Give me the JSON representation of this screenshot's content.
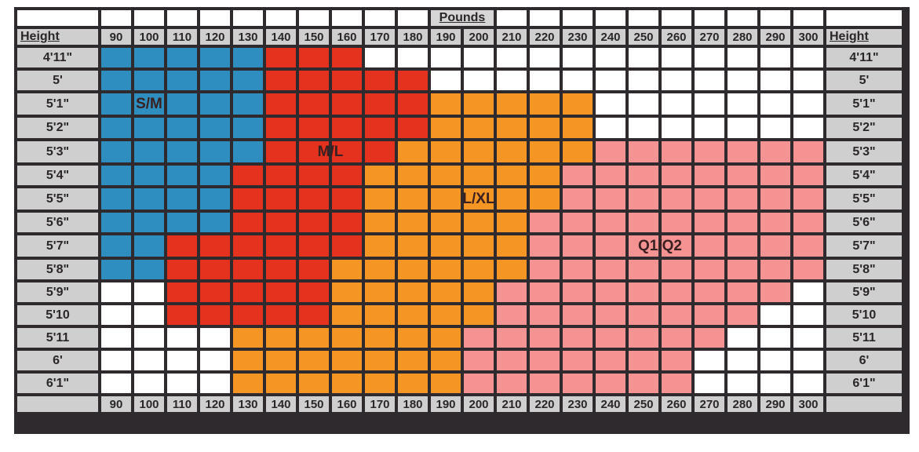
{
  "chart_data": {
    "type": "heatmap",
    "title": "Pounds",
    "xlabel": "Pounds",
    "ylabel": "Height",
    "row_header_label": "Height",
    "weights": [
      "90",
      "100",
      "110",
      "120",
      "130",
      "140",
      "150",
      "160",
      "170",
      "180",
      "190",
      "200",
      "210",
      "220",
      "230",
      "240",
      "250",
      "260",
      "270",
      "280",
      "290",
      "300"
    ],
    "heights": [
      "4'11\"",
      "5'",
      "5'1\"",
      "5'2\"",
      "5'3\"",
      "5'4\"",
      "5'5\"",
      "5'6\"",
      "5'7\"",
      "5'8\"",
      "5'9\"",
      "5'10",
      "5'11",
      "6'",
      "6'1\""
    ],
    "sizes": [
      {
        "code": "S",
        "name": "S/M",
        "color": "#2f8ec0"
      },
      {
        "code": "M",
        "name": "M/L",
        "color": "#e4321f"
      },
      {
        "code": "L",
        "name": "L/XL",
        "color": "#f49524"
      },
      {
        "code": "Q",
        "name": "Q1/Q2",
        "color": "#f59393"
      },
      {
        "code": "W",
        "name": "",
        "color": "#ffffff"
      }
    ],
    "grid": [
      "SSSSSMMMWWWWWWWWWWWWWW",
      "SSSSSMMMMMWWWWWWWWWWWW",
      "SSSSSMMMMMLLLLLWWWWWWW",
      "SSSSSMMMMMLLLLLWWWWWWW",
      "SSSSSMMMMLLLLLLQQQQQQQ",
      "SSSSMMMMLLLLLLQQQQQQQQ",
      "SSSSMMMMLLLLLLQQQQQQQQ",
      "SSSSMMMMLLLLLQQQQQQQQQ",
      "SSMMMMMMLLLLLQQQQQQQQQ",
      "SSMMMMMLLLLLLQQQQQQQQQ",
      "WWMMMMMLLLLLQQQQQQQQQW",
      "WWMMMMMLLLLLQQQQQQQQWW",
      "WWWWLLLLLLLQQQQQQQQWWW",
      "WWWWLLLLLLLQQQQQQQWWWW",
      "WWWWLLLLLLLQQQQQQQWWWW"
    ],
    "zone_labels": [
      {
        "code": "S",
        "text": "S/M",
        "row": 2,
        "col": 1
      },
      {
        "code": "M",
        "text": "M/L",
        "row": 4,
        "col": 6.5
      },
      {
        "code": "L",
        "text": "L/XL",
        "row": 6,
        "col": 11
      },
      {
        "code": "Q",
        "text": "Q1/Q2",
        "row": 8,
        "col": 16.5
      }
    ],
    "grid_on": true
  }
}
